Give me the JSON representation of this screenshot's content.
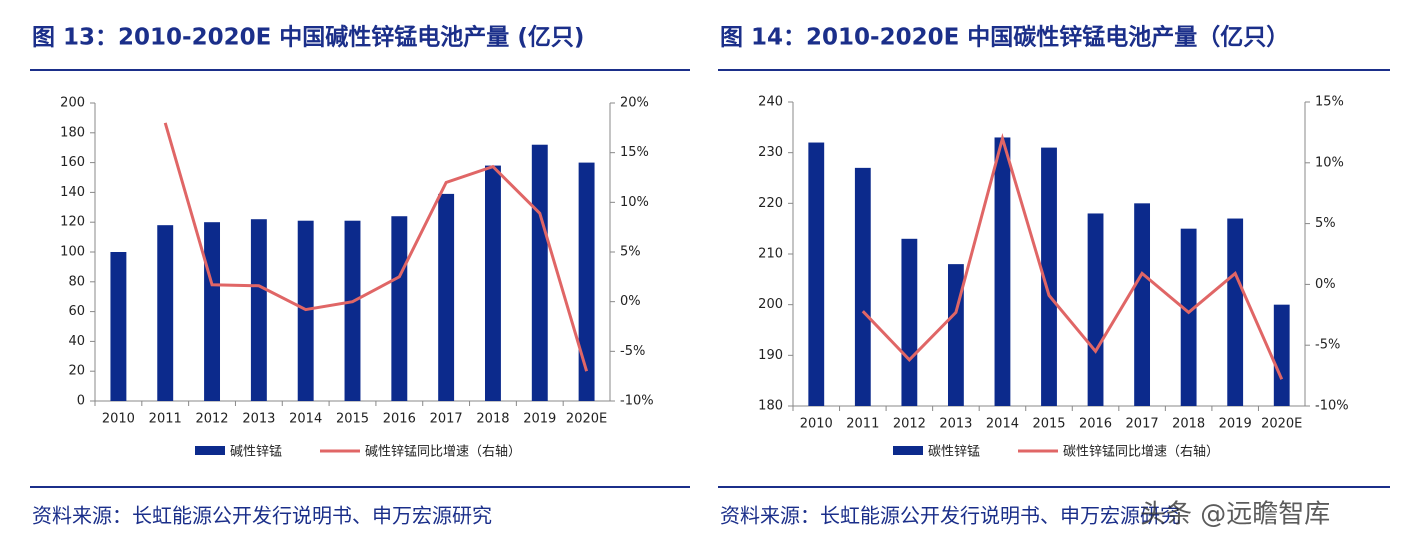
{
  "chart_data": [
    {
      "type": "bar",
      "title": "图 13：2010-2020E 中国碱性锌锰电池产量 (亿只)",
      "categories": [
        "2010",
        "2011",
        "2012",
        "2013",
        "2014",
        "2015",
        "2016",
        "2017",
        "2018",
        "2019",
        "2020E"
      ],
      "series": [
        {
          "name": "碱性锌锰",
          "type": "bar",
          "color": "#0c2a8c",
          "values": [
            100,
            118,
            120,
            122,
            121,
            121,
            124,
            139,
            158,
            172,
            160
          ]
        },
        {
          "name": "碱性锌锰同比增速（右轴）",
          "type": "line",
          "axis": "y2",
          "color": "#e06666",
          "values": [
            null,
            18,
            1.7,
            1.6,
            -0.8,
            0,
            2.5,
            12,
            13.6,
            8.9,
            -7
          ]
        }
      ],
      "ylim": [
        0,
        200
      ],
      "yticks": [
        0,
        20,
        40,
        60,
        80,
        100,
        120,
        140,
        160,
        180,
        200
      ],
      "y2lim": [
        -10,
        20
      ],
      "y2ticks": [
        {
          "value": -10,
          "label": "-10%"
        },
        {
          "value": -5,
          "label": "-5%"
        },
        {
          "value": 0,
          "label": "0%"
        },
        {
          "value": 5,
          "label": "5%"
        },
        {
          "value": 10,
          "label": "10%"
        },
        {
          "value": 15,
          "label": "15%"
        },
        {
          "value": 20,
          "label": "20%"
        }
      ],
      "source": "资料来源：长虹能源公开发行说明书、申万宏源研究"
    },
    {
      "type": "bar",
      "title": "图 14：2010-2020E 中国碳性锌锰电池产量（亿只）",
      "categories": [
        "2010",
        "2011",
        "2012",
        "2013",
        "2014",
        "2015",
        "2016",
        "2017",
        "2018",
        "2019",
        "2020E"
      ],
      "series": [
        {
          "name": "碳性锌锰",
          "type": "bar",
          "color": "#0c2a8c",
          "values": [
            232,
            227,
            213,
            208,
            233,
            231,
            218,
            220,
            215,
            217,
            200
          ]
        },
        {
          "name": "碳性锌锰同比增速（右轴）",
          "type": "line",
          "axis": "y2",
          "color": "#e06666",
          "values": [
            null,
            -2.2,
            -6.2,
            -2.3,
            12,
            -0.9,
            -5.5,
            0.9,
            -2.3,
            0.9,
            -7.8
          ]
        }
      ],
      "ylim": [
        180,
        240
      ],
      "yticks": [
        180,
        190,
        200,
        210,
        220,
        230,
        240
      ],
      "y2lim": [
        -10,
        15
      ],
      "y2ticks": [
        {
          "value": -10,
          "label": "-10%"
        },
        {
          "value": -5,
          "label": "-5%"
        },
        {
          "value": 0,
          "label": "0%"
        },
        {
          "value": 5,
          "label": "5%"
        },
        {
          "value": 10,
          "label": "10%"
        },
        {
          "value": 15,
          "label": "15%"
        }
      ],
      "source": "资料来源：长虹能源公开发行说明书、申万宏源研究",
      "watermark": "头条 @远瞻智库"
    }
  ]
}
